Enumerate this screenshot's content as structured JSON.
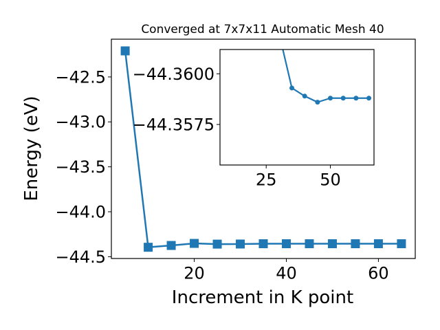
{
  "chart_data": [
    {
      "type": "line",
      "title": "Converged at 7x7x11 Automatic Mesh 40",
      "xlabel": "Increment in K point",
      "ylabel": "Energy (eV)",
      "xlim": [
        2.0,
        68.0
      ],
      "ylim": [
        -44.52,
        -42.08
      ],
      "xticks": [
        20,
        40,
        60
      ],
      "yticks": [
        -42.5,
        -43.0,
        -43.5,
        -44.0,
        -44.5
      ],
      "ytick_labels": [
        "−42.5",
        "−43.0",
        "−43.5",
        "−44.0",
        "−44.5"
      ],
      "marker": "square",
      "color": "#1f77b4",
      "series": [
        {
          "x": [
            5,
            10,
            15,
            20,
            25,
            30,
            35,
            40,
            45,
            50,
            55,
            60,
            65
          ],
          "y": [
            -42.21,
            -44.395,
            -44.375,
            -44.352,
            -44.36,
            -44.359,
            -44.3557,
            -44.3557,
            -44.3557,
            -44.3557,
            -44.3557,
            -44.3557,
            -44.3557
          ]
        }
      ]
    },
    {
      "type": "line",
      "inset": true,
      "xlim": [
        7.0,
        67.0
      ],
      "ylim": [
        -44.3555,
        -44.3612
      ],
      "xticks": [
        25,
        50
      ],
      "yticks": [
        -44.36,
        -44.3575
      ],
      "ytick_labels": [
        "−44.3600",
        "−44.3575"
      ],
      "marker": "circle",
      "color": "#1f77b4",
      "series": [
        {
          "x": [
            30,
            35,
            40,
            45,
            50,
            55,
            60,
            65
          ],
          "y": [
            -44.362,
            -44.3593,
            -44.3589,
            -44.3586,
            -44.3588,
            -44.3588,
            -44.3588,
            -44.3588
          ]
        }
      ]
    }
  ]
}
